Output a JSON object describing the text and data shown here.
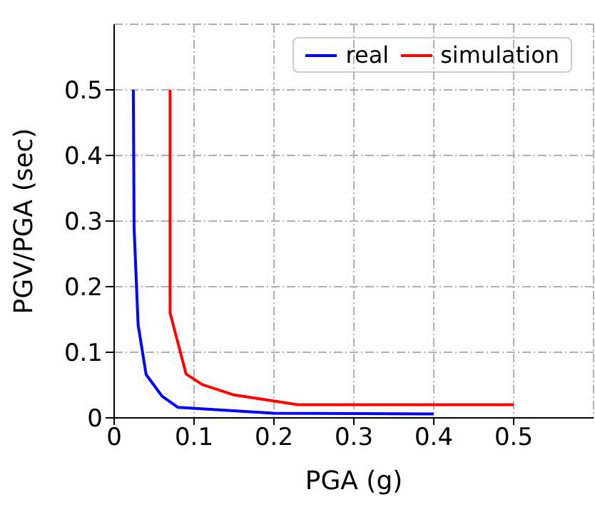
{
  "chart_data": {
    "type": "line",
    "xlabel": "PGA (g)",
    "ylabel": "PGV/PGA (sec)",
    "xlim": [
      0,
      0.6
    ],
    "xticks": [
      0,
      0.1,
      0.2,
      0.3,
      0.4,
      0.5
    ],
    "ylim": [
      0,
      0.6
    ],
    "yticks": [
      0,
      0.1,
      0.2,
      0.3,
      0.4,
      0.5
    ],
    "grid": true,
    "legend": "top right",
    "line_style": "solid",
    "marker": "none",
    "series": [
      {
        "name": "real",
        "color": "#0000ff",
        "x": [
          0.024,
          0.025,
          0.03,
          0.04,
          0.06,
          0.08,
          0.2,
          0.4
        ],
        "values": [
          0.5,
          0.288,
          0.142,
          0.066,
          0.033,
          0.016,
          0.007,
          0.006
        ]
      },
      {
        "name": "simulation",
        "color": "#ff0000",
        "x": [
          0.07,
          0.07,
          0.09,
          0.11,
          0.15,
          0.23,
          0.5
        ],
        "values": [
          0.5,
          0.16,
          0.067,
          0.051,
          0.035,
          0.02,
          0.02
        ]
      }
    ]
  }
}
